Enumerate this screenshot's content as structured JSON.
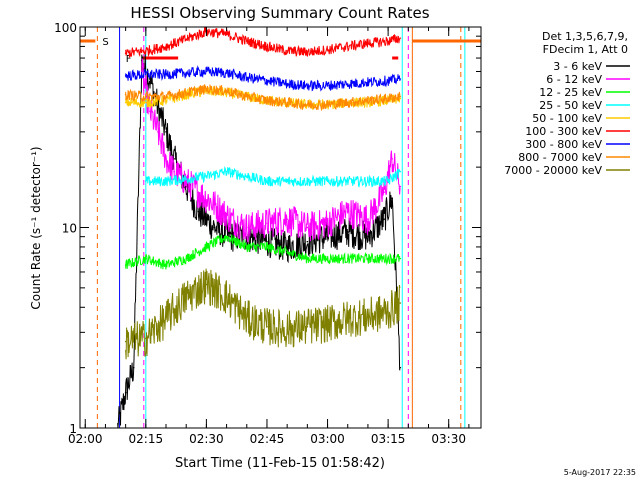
{
  "chart_data": {
    "type": "line",
    "title": "HESSI Observing Summary Count Rates",
    "xlabel": "Start Time (11-Feb-15 01:58:42)",
    "ylabel": "Count Rate (s⁻¹ detector⁻¹)",
    "y_scale": "log",
    "ylim": [
      1,
      100
    ],
    "xlim": [
      "01:58:42",
      "03:38:00"
    ],
    "x_ticks": [
      "02:00",
      "02:15",
      "02:30",
      "02:45",
      "03:00",
      "03:15",
      "03:30"
    ],
    "y_ticks": [
      "1",
      "10",
      "100"
    ],
    "footer_date": "5-Aug-2017 22:35",
    "legend_header": [
      "Det 1,3,5,6,7,9,",
      "FDecim 1, Att 0"
    ],
    "flags": [
      {
        "label": "S",
        "color": "#ff6600"
      },
      {
        "label": "F",
        "color": "#ff0000"
      }
    ],
    "vlines": [
      {
        "time": "02:03:00",
        "color": "#ff6600",
        "style": "dashed"
      },
      {
        "time": "02:08:30",
        "color": "#0000ff",
        "style": "solid"
      },
      {
        "time": "02:14:30",
        "color": "#ff00ff",
        "style": "dashed"
      },
      {
        "time": "02:15:00",
        "color": "#00ffff",
        "style": "solid"
      },
      {
        "time": "03:18:30",
        "color": "#00ffff",
        "style": "solid"
      },
      {
        "time": "03:20:00",
        "color": "#ff00ff",
        "style": "dashed"
      },
      {
        "time": "03:21:00",
        "color": "#ff6600",
        "style": "solid"
      },
      {
        "time": "03:33:00",
        "color": "#ff6600",
        "style": "dashed"
      },
      {
        "time": "03:34:00",
        "color": "#00ffff",
        "style": "solid"
      }
    ],
    "series": [
      {
        "name": "3 - 6 keV",
        "color": "#000000",
        "x": [
          "02:08",
          "02:10",
          "02:12",
          "02:14",
          "02:16",
          "02:18",
          "02:20",
          "02:22",
          "02:25",
          "02:28",
          "02:32",
          "02:36",
          "02:40",
          "02:45",
          "02:50",
          "02:55",
          "03:00",
          "03:05",
          "03:10",
          "03:14",
          "03:16",
          "03:18"
        ],
        "y": [
          1.0,
          1.5,
          2.0,
          68,
          55,
          40,
          30,
          22,
          16,
          12,
          10,
          9,
          9,
          8.5,
          8,
          8.5,
          9,
          9.5,
          9,
          11,
          14,
          2
        ]
      },
      {
        "name": "6 - 12 keV",
        "color": "#ff00ff",
        "x": [
          "02:14",
          "02:16",
          "02:18",
          "02:20",
          "02:22",
          "02:25",
          "02:28",
          "02:32",
          "02:36",
          "02:40",
          "02:45",
          "02:50",
          "02:55",
          "03:00",
          "03:05",
          "03:10",
          "03:14",
          "03:16",
          "03:18"
        ],
        "y": [
          60,
          38,
          30,
          22,
          19,
          17,
          15,
          13,
          11,
          10,
          10.5,
          11,
          10,
          10.5,
          12,
          11,
          15,
          22,
          16
        ]
      },
      {
        "name": "12 - 25 keV",
        "color": "#00ff00",
        "x": [
          "02:10",
          "02:15",
          "02:20",
          "02:25",
          "02:30",
          "02:35",
          "02:40",
          "02:45",
          "02:50",
          "02:55",
          "03:00",
          "03:05",
          "03:10",
          "03:15",
          "03:18"
        ],
        "y": [
          6.5,
          7,
          6.5,
          7,
          8,
          9,
          8,
          8,
          7.5,
          7,
          7,
          7,
          7,
          7,
          7
        ]
      },
      {
        "name": "25 - 50 keV",
        "color": "#00ffff",
        "x": [
          "02:15",
          "02:20",
          "02:25",
          "02:30",
          "02:35",
          "02:40",
          "02:45",
          "02:50",
          "02:55",
          "03:00",
          "03:05",
          "03:10",
          "03:15",
          "03:18"
        ],
        "y": [
          17,
          17,
          17.5,
          18,
          19,
          18,
          17,
          17,
          17,
          17,
          17,
          17,
          17,
          19
        ]
      },
      {
        "name": "50 - 100 keV",
        "color": "#ffcc00",
        "x": [
          "02:10",
          "02:15",
          "02:20",
          "02:25",
          "02:30",
          "02:35",
          "02:40",
          "02:45",
          "02:50",
          "02:55",
          "03:00",
          "03:05",
          "03:10",
          "03:15",
          "03:18"
        ],
        "y": [
          42,
          42,
          43,
          46,
          48,
          47,
          45,
          43,
          42,
          41,
          41,
          42,
          42,
          43,
          44
        ]
      },
      {
        "name": "100 - 300 keV",
        "color": "#ff0000",
        "x": [
          "02:10",
          "02:15",
          "02:20",
          "02:25",
          "02:30",
          "02:35",
          "02:40",
          "02:45",
          "02:50",
          "02:55",
          "03:00",
          "03:05",
          "03:10",
          "03:15",
          "03:18"
        ],
        "y": [
          74,
          76,
          80,
          87,
          95,
          92,
          85,
          80,
          76,
          75,
          77,
          80,
          83,
          85,
          88
        ]
      },
      {
        "name": "300 - 800 keV",
        "color": "#0000ff",
        "x": [
          "02:10",
          "02:15",
          "02:20",
          "02:25",
          "02:30",
          "02:35",
          "02:40",
          "02:45",
          "02:50",
          "02:55",
          "03:00",
          "03:05",
          "03:10",
          "03:15",
          "03:18"
        ],
        "y": [
          57,
          58,
          58,
          59,
          60,
          59,
          56,
          54,
          52,
          51,
          51,
          52,
          53,
          54,
          55
        ]
      },
      {
        "name": "800 - 7000 keV",
        "color": "#ff8800",
        "x": [
          "02:10",
          "02:15",
          "02:20",
          "02:25",
          "02:30",
          "02:35",
          "02:40",
          "02:45",
          "02:50",
          "02:55",
          "03:00",
          "03:05",
          "03:10",
          "03:15",
          "03:18"
        ],
        "y": [
          46,
          45,
          45,
          47,
          49,
          48,
          45,
          43,
          42,
          41,
          41,
          42,
          43,
          44,
          45
        ]
      },
      {
        "name": "7000 - 20000 keV",
        "color": "#808000",
        "x": [
          "02:10",
          "02:15",
          "02:20",
          "02:25",
          "02:30",
          "02:35",
          "02:40",
          "02:45",
          "02:50",
          "02:55",
          "03:00",
          "03:05",
          "03:10",
          "03:15",
          "03:18"
        ],
        "y": [
          2.7,
          2.8,
          3.5,
          4.5,
          5.2,
          4.5,
          3.5,
          3.2,
          3.1,
          3.2,
          3.3,
          3.5,
          3.6,
          3.8,
          4.2
        ]
      }
    ]
  }
}
